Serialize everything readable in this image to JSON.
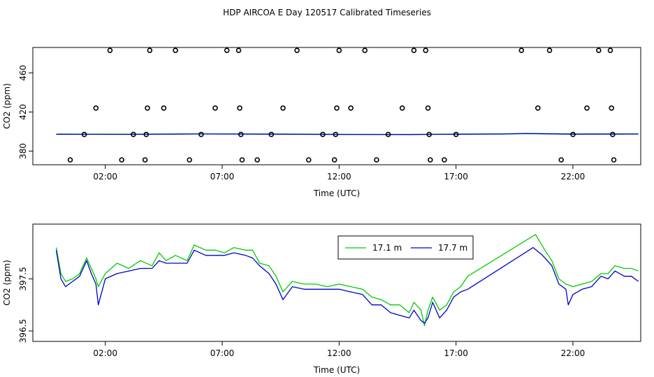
{
  "figure": {
    "title": "HDP AIRCOA E  Day 120517  Calibrated Timeseries"
  },
  "chart_data": [
    {
      "type": "scatter",
      "xlabel": "Time (UTC)",
      "ylabel": "CO2 (ppm)",
      "xlim": [
        -1.1,
        24.9
      ],
      "ylim": [
        366,
        486
      ],
      "x_ticks": [
        {
          "value": 2,
          "label": "02:00"
        },
        {
          "value": 7,
          "label": "07:00"
        },
        {
          "value": 12,
          "label": "12:00"
        },
        {
          "value": 17,
          "label": "17:00"
        },
        {
          "value": 22,
          "label": "22:00"
        }
      ],
      "y_ticks": [
        {
          "value": 380,
          "label": "380"
        },
        {
          "value": 420,
          "label": "420"
        },
        {
          "value": 460,
          "label": "460"
        }
      ],
      "grid": false,
      "series": [
        {
          "color": "#00cc00",
          "line": [
            [
              -0.1,
              397.4
            ],
            [
              3,
              397.3
            ],
            [
              6,
              397.6
            ],
            [
              9,
              397.5
            ],
            [
              12,
              397.2
            ],
            [
              15,
              397.1
            ],
            [
              17,
              397.4
            ],
            [
              19,
              397.7
            ],
            [
              20,
              398.1
            ],
            [
              22,
              397.6
            ],
            [
              24.8,
              397.6
            ]
          ]
        },
        {
          "color": "#0000cc",
          "line": [
            [
              -0.1,
              397.2
            ],
            [
              3,
              397.1
            ],
            [
              6,
              397.5
            ],
            [
              9,
              397.3
            ],
            [
              12,
              397.0
            ],
            [
              15,
              396.9
            ],
            [
              17,
              397.2
            ],
            [
              19,
              397.4
            ],
            [
              20,
              397.9
            ],
            [
              22,
              397.3
            ],
            [
              24.8,
              397.4
            ]
          ]
        }
      ],
      "markers": {
        "style": "open-circle",
        "points": [
          [
            0.5,
            371
          ],
          [
            1.1,
            397
          ],
          [
            1.6,
            424
          ],
          [
            2.2,
            483
          ],
          [
            2.7,
            371
          ],
          [
            3.2,
            397
          ],
          [
            3.7,
            371
          ],
          [
            3.75,
            397
          ],
          [
            3.8,
            424
          ],
          [
            3.9,
            483
          ],
          [
            4.5,
            424
          ],
          [
            5.0,
            483
          ],
          [
            5.6,
            371
          ],
          [
            6.1,
            397
          ],
          [
            6.7,
            424
          ],
          [
            7.2,
            483
          ],
          [
            7.7,
            483
          ],
          [
            7.75,
            424
          ],
          [
            7.8,
            397
          ],
          [
            7.85,
            371
          ],
          [
            8.5,
            371
          ],
          [
            9.1,
            397
          ],
          [
            9.6,
            424
          ],
          [
            10.2,
            483
          ],
          [
            10.7,
            371
          ],
          [
            11.3,
            397
          ],
          [
            11.8,
            371
          ],
          [
            11.85,
            397
          ],
          [
            11.9,
            424
          ],
          [
            12.0,
            483
          ],
          [
            12.5,
            424
          ],
          [
            13.1,
            483
          ],
          [
            13.6,
            371
          ],
          [
            14.1,
            397
          ],
          [
            14.7,
            424
          ],
          [
            15.2,
            483
          ],
          [
            15.7,
            483
          ],
          [
            15.8,
            424
          ],
          [
            15.85,
            397
          ],
          [
            15.9,
            371
          ],
          [
            16.5,
            371
          ],
          [
            17.0,
            397
          ],
          [
            19.8,
            483
          ],
          [
            20.5,
            424
          ],
          [
            21.0,
            483
          ],
          [
            21.5,
            371
          ],
          [
            22.0,
            397
          ],
          [
            22.6,
            424
          ],
          [
            23.1,
            483
          ],
          [
            23.6,
            483
          ],
          [
            23.65,
            424
          ],
          [
            23.7,
            397
          ],
          [
            23.75,
            371
          ]
        ]
      }
    },
    {
      "type": "line",
      "xlabel": "Time (UTC)",
      "ylabel": "CO2 (ppm)",
      "xlim": [
        -1.1,
        24.9
      ],
      "ylim": [
        396.3,
        398.55
      ],
      "x_ticks": [
        {
          "value": 2,
          "label": "02:00"
        },
        {
          "value": 7,
          "label": "07:00"
        },
        {
          "value": 12,
          "label": "12:00"
        },
        {
          "value": 17,
          "label": "17:00"
        },
        {
          "value": 22,
          "label": "22:00"
        }
      ],
      "y_ticks": [
        {
          "value": 396.5,
          "label": "396.5"
        },
        {
          "value": 397.5,
          "label": "397.5"
        }
      ],
      "grid": false,
      "legend_position": "top",
      "series": [
        {
          "name": "17.1 m",
          "color": "#00cc00",
          "points": [
            [
              -0.1,
              398.1
            ],
            [
              0.1,
              397.6
            ],
            [
              0.3,
              397.45
            ],
            [
              0.6,
              397.5
            ],
            [
              0.9,
              397.6
            ],
            [
              1.2,
              397.9
            ],
            [
              1.4,
              397.7
            ],
            [
              1.6,
              397.5
            ],
            [
              1.7,
              397.35
            ],
            [
              2.0,
              397.6
            ],
            [
              2.5,
              397.8
            ],
            [
              3.0,
              397.7
            ],
            [
              3.5,
              397.85
            ],
            [
              4.0,
              397.75
            ],
            [
              4.3,
              398.0
            ],
            [
              4.6,
              397.85
            ],
            [
              5.0,
              397.95
            ],
            [
              5.5,
              397.85
            ],
            [
              5.8,
              398.15
            ],
            [
              6.3,
              398.05
            ],
            [
              6.7,
              398.05
            ],
            [
              7.1,
              398.0
            ],
            [
              7.5,
              398.1
            ],
            [
              8.0,
              398.05
            ],
            [
              8.3,
              398.05
            ],
            [
              8.6,
              397.8
            ],
            [
              9.0,
              397.75
            ],
            [
              9.3,
              397.55
            ],
            [
              9.6,
              397.25
            ],
            [
              10.0,
              397.45
            ],
            [
              10.5,
              397.4
            ],
            [
              11.0,
              397.4
            ],
            [
              11.5,
              397.35
            ],
            [
              12.0,
              397.4
            ],
            [
              12.5,
              397.35
            ],
            [
              13.0,
              397.3
            ],
            [
              13.4,
              397.15
            ],
            [
              13.8,
              397.1
            ],
            [
              14.2,
              397.0
            ],
            [
              14.6,
              397.0
            ],
            [
              15.0,
              396.85
            ],
            [
              15.2,
              397.05
            ],
            [
              15.5,
              396.9
            ],
            [
              15.65,
              396.6
            ],
            [
              15.8,
              396.9
            ],
            [
              16.0,
              397.15
            ],
            [
              16.3,
              396.9
            ],
            [
              16.6,
              397.0
            ],
            [
              16.9,
              397.25
            ],
            [
              17.2,
              397.35
            ],
            [
              17.5,
              397.55
            ],
            [
              20.4,
              398.35
            ],
            [
              20.8,
              398.05
            ],
            [
              21.1,
              397.85
            ],
            [
              21.4,
              397.5
            ],
            [
              21.7,
              397.4
            ],
            [
              22.0,
              397.35
            ],
            [
              22.4,
              397.4
            ],
            [
              22.8,
              397.45
            ],
            [
              23.2,
              397.6
            ],
            [
              23.5,
              397.6
            ],
            [
              23.8,
              397.75
            ],
            [
              24.2,
              397.7
            ],
            [
              24.5,
              397.7
            ],
            [
              24.8,
              397.65
            ]
          ]
        },
        {
          "name": "17.7 m",
          "color": "#0000cc",
          "points": [
            [
              -0.1,
              398.05
            ],
            [
              0.1,
              397.5
            ],
            [
              0.3,
              397.35
            ],
            [
              0.6,
              397.45
            ],
            [
              0.9,
              397.55
            ],
            [
              1.2,
              397.85
            ],
            [
              1.4,
              397.6
            ],
            [
              1.6,
              397.4
            ],
            [
              1.7,
              397.0
            ],
            [
              2.0,
              397.5
            ],
            [
              2.5,
              397.6
            ],
            [
              3.0,
              397.65
            ],
            [
              3.5,
              397.7
            ],
            [
              4.0,
              397.7
            ],
            [
              4.3,
              397.85
            ],
            [
              4.6,
              397.8
            ],
            [
              5.0,
              397.8
            ],
            [
              5.5,
              397.8
            ],
            [
              5.8,
              398.05
            ],
            [
              6.3,
              397.95
            ],
            [
              6.7,
              397.95
            ],
            [
              7.1,
              397.95
            ],
            [
              7.5,
              398.0
            ],
            [
              8.0,
              397.95
            ],
            [
              8.3,
              397.9
            ],
            [
              8.6,
              397.75
            ],
            [
              9.0,
              397.6
            ],
            [
              9.3,
              397.4
            ],
            [
              9.6,
              397.1
            ],
            [
              10.0,
              397.35
            ],
            [
              10.5,
              397.3
            ],
            [
              11.0,
              397.3
            ],
            [
              11.5,
              397.3
            ],
            [
              12.0,
              397.3
            ],
            [
              12.5,
              397.25
            ],
            [
              13.0,
              397.2
            ],
            [
              13.4,
              397.0
            ],
            [
              13.8,
              397.0
            ],
            [
              14.2,
              396.85
            ],
            [
              14.6,
              396.8
            ],
            [
              15.0,
              396.75
            ],
            [
              15.2,
              396.9
            ],
            [
              15.5,
              396.7
            ],
            [
              15.65,
              396.65
            ],
            [
              15.8,
              396.75
            ],
            [
              16.0,
              397.05
            ],
            [
              16.3,
              396.75
            ],
            [
              16.6,
              396.9
            ],
            [
              16.9,
              397.15
            ],
            [
              17.2,
              397.25
            ],
            [
              17.5,
              397.3
            ],
            [
              20.3,
              398.1
            ],
            [
              20.7,
              397.95
            ],
            [
              21.1,
              397.75
            ],
            [
              21.4,
              397.4
            ],
            [
              21.7,
              397.3
            ],
            [
              21.8,
              397.0
            ],
            [
              22.0,
              397.2
            ],
            [
              22.4,
              397.3
            ],
            [
              22.8,
              397.35
            ],
            [
              23.2,
              397.55
            ],
            [
              23.5,
              397.5
            ],
            [
              23.8,
              397.65
            ],
            [
              24.2,
              397.55
            ],
            [
              24.5,
              397.55
            ],
            [
              24.8,
              397.45
            ]
          ]
        }
      ]
    }
  ]
}
